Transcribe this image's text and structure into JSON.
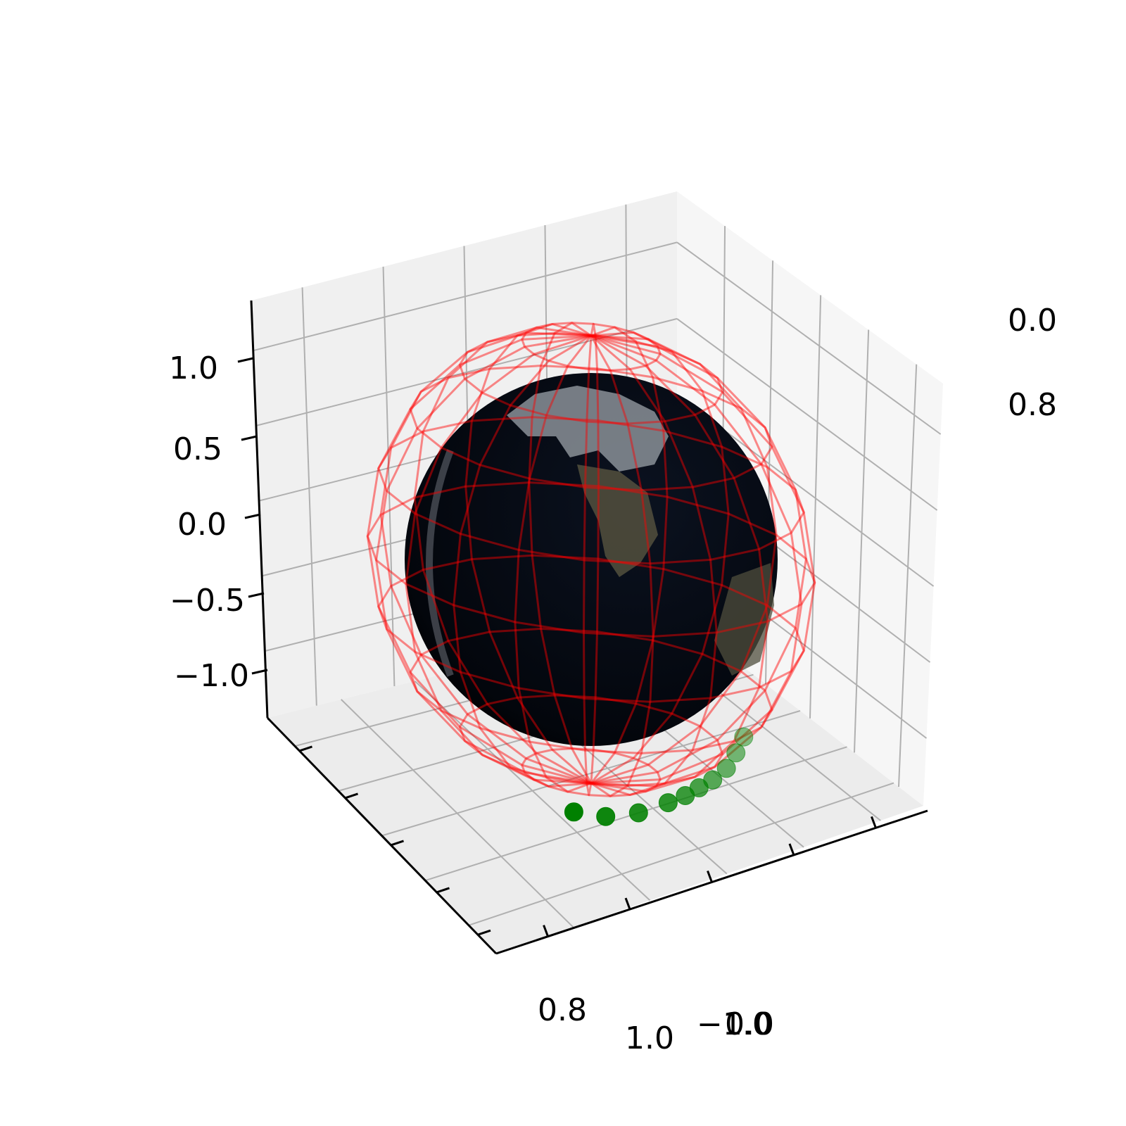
{
  "chart_data": {
    "type": "scatter",
    "kind": "3d",
    "title": "",
    "xlabel": "",
    "ylabel": "",
    "zlabel": "",
    "grid": true,
    "axes": {
      "z": {
        "ticks": [
          1.0,
          0.5,
          0.0,
          -0.5,
          -1.0
        ],
        "tick_labels": [
          "1.0",
          "0.5",
          "0.0",
          "−0.5",
          "−1.0"
        ],
        "lim": [
          -1.3,
          1.3
        ]
      },
      "x_partial_labels": [
        "−1.0",
        "1.0",
        "0.0"
      ],
      "y_partial_labels": [
        "0.0",
        "0.8"
      ]
    },
    "surfaces": [
      {
        "name": "",
        "description": "textured sphere",
        "radius": 1.0,
        "colors": [
          "#050a14",
          "#8a9098",
          "#6b6a55"
        ]
      },
      {
        "name": "",
        "description": "wireframe sphere",
        "radius": 1.2,
        "color": "#ff0000",
        "alpha": 0.45
      }
    ],
    "series": [
      {
        "name": "",
        "color": "#008000",
        "points_3d": [
          [
            0.1,
            -0.55,
            -1.18
          ],
          [
            0.3,
            -0.6,
            -1.15
          ],
          [
            0.48,
            -0.58,
            -1.1
          ],
          [
            0.62,
            -0.5,
            -1.04
          ],
          [
            0.7,
            -0.45,
            -1.0
          ],
          [
            0.76,
            -0.4,
            -0.96
          ],
          [
            0.82,
            -0.35,
            -0.92
          ],
          [
            0.88,
            -0.3,
            -0.86
          ],
          [
            0.92,
            -0.26,
            -0.78
          ],
          [
            0.95,
            -0.22,
            -0.7
          ]
        ]
      }
    ]
  }
}
